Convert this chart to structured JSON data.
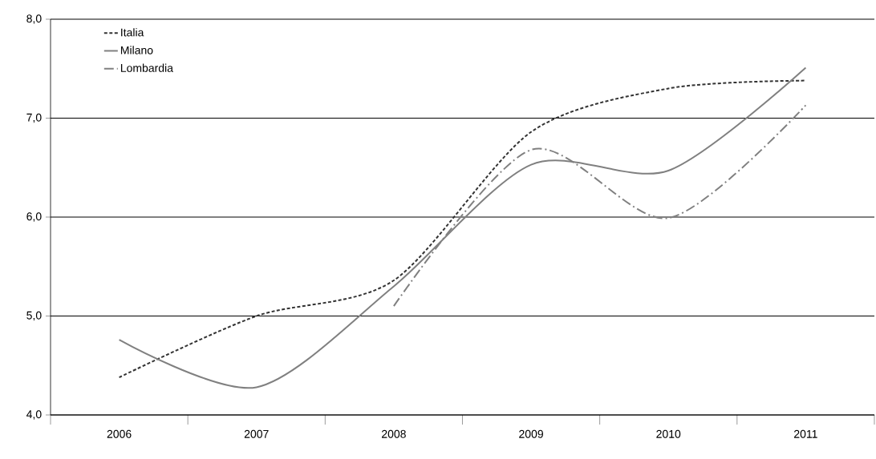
{
  "chart_data": {
    "type": "line",
    "categories": [
      "2006",
      "2007",
      "2008",
      "2009",
      "2010",
      "2011"
    ],
    "series": [
      {
        "name": "Italia",
        "color": "#333333",
        "line_style": "dashed",
        "values": [
          4.38,
          5.0,
          5.36,
          6.86,
          7.3,
          7.38
        ]
      },
      {
        "name": "Milano",
        "color": "#808080",
        "line_style": "solid",
        "values": [
          4.76,
          4.28,
          5.3,
          6.53,
          6.47,
          7.51
        ]
      },
      {
        "name": "Lombardia",
        "color": "#808080",
        "line_style": "dashdot",
        "values": [
          null,
          null,
          5.1,
          6.68,
          5.99,
          7.13
        ]
      }
    ],
    "ylim": [
      4,
      8
    ],
    "yticks": [
      {
        "value": 4,
        "label": "4,0"
      },
      {
        "value": 5,
        "label": "5,0"
      },
      {
        "value": 6,
        "label": "6,0"
      },
      {
        "value": 7,
        "label": "7,0"
      },
      {
        "value": 8,
        "label": "8,0"
      }
    ],
    "grid": "y",
    "legend": "top left",
    "marker": "none"
  }
}
